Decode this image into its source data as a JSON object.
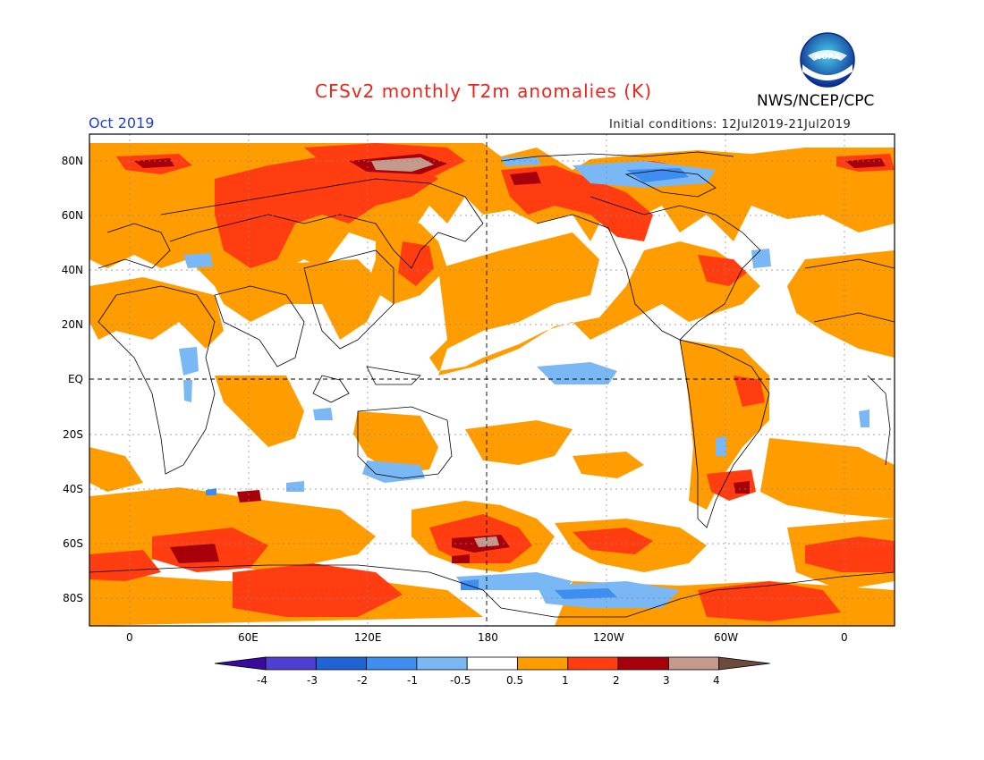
{
  "header": {
    "title": "CFSv2 monthly T2m anomalies (K)",
    "agency": "NWS/NCEP/CPC",
    "month": "Oct 2019",
    "initial_conditions": "Initial conditions: 12Jul2019-21Jul2019",
    "logo_text": "NOAA"
  },
  "latitude_labels": [
    "80N",
    "60N",
    "40N",
    "20N",
    "EQ",
    "20S",
    "40S",
    "60S",
    "80S"
  ],
  "longitude_labels": [
    "0",
    "60E",
    "120E",
    "180",
    "120W",
    "60W",
    "0"
  ],
  "colorbar": {
    "labels": [
      "-4",
      "-3",
      "-2",
      "-1",
      "-0.5",
      "0.5",
      "1",
      "2",
      "3",
      "4"
    ],
    "colors": [
      "#3a0c9c",
      "#4f3fd1",
      "#1f63d4",
      "#3d8ef0",
      "#7ab7f5",
      "#ffffff",
      "#ff9d00",
      "#ff3d10",
      "#a8000b",
      "#c49a8c",
      "#6e4a3c"
    ]
  },
  "colors": {
    "title": "#e8261c",
    "month": "#2140d8",
    "anomaly_warm": "#ff9d00",
    "anomaly_hot": "#ff3d10",
    "anomaly_very_hot": "#a8000b",
    "anomaly_extreme": "#c49a8c",
    "anomaly_cool": "#7ab7f5",
    "anomaly_cold": "#3d8ef0"
  }
}
